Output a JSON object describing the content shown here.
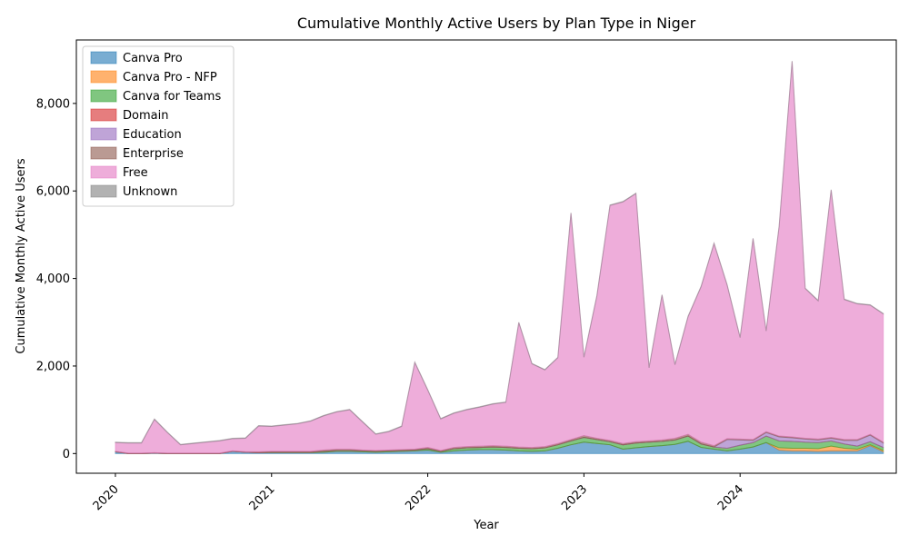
{
  "chart_data": {
    "type": "area",
    "stacked": true,
    "title": "Cumulative Monthly Active Users by Plan Type in Niger",
    "xlabel": "Year",
    "ylabel": "Cumulative Monthly Active Users",
    "x_tick_labels": [
      "2020",
      "2021",
      "2022",
      "2023",
      "2024"
    ],
    "y_tick_labels": [
      "0",
      "2,000",
      "4,000",
      "6,000",
      "8,000"
    ],
    "y_ticks": [
      0,
      2000,
      4000,
      6000,
      8000
    ],
    "ylim": [
      -450,
      9450
    ],
    "xlim": [
      2019.75,
      2025.0
    ],
    "grid": false,
    "legend_position": "top-left",
    "x": [
      2020.0,
      2020.083,
      2020.167,
      2020.25,
      2020.333,
      2020.417,
      2020.5,
      2020.583,
      2020.667,
      2020.75,
      2020.833,
      2020.917,
      2021.0,
      2021.083,
      2021.167,
      2021.25,
      2021.333,
      2021.417,
      2021.5,
      2021.583,
      2021.667,
      2021.75,
      2021.833,
      2021.917,
      2022.0,
      2022.083,
      2022.167,
      2022.25,
      2022.333,
      2022.417,
      2022.5,
      2022.583,
      2022.667,
      2022.75,
      2022.833,
      2022.917,
      2023.0,
      2023.083,
      2023.167,
      2023.25,
      2023.333,
      2023.417,
      2023.5,
      2023.583,
      2023.667,
      2023.75,
      2023.833,
      2023.917,
      2024.0,
      2024.083,
      2024.167,
      2024.25,
      2024.333,
      2024.417,
      2024.5,
      2024.583,
      2024.667,
      2024.75,
      2024.833,
      2024.917
    ],
    "series": [
      {
        "name": "Canva Pro",
        "color": "#1f77b4",
        "values": [
          40,
          0,
          0,
          10,
          0,
          0,
          0,
          0,
          0,
          50,
          30,
          20,
          20,
          20,
          20,
          20,
          30,
          50,
          50,
          40,
          30,
          40,
          50,
          60,
          80,
          30,
          60,
          80,
          90,
          90,
          80,
          60,
          50,
          60,
          120,
          200,
          260,
          230,
          200,
          100,
          130,
          160,
          180,
          210,
          280,
          140,
          100,
          60,
          100,
          150,
          250,
          80,
          60,
          60,
          50,
          60,
          60,
          60,
          180,
          40
        ]
      },
      {
        "name": "Canva Pro - NFP",
        "color": "#ff7f0e",
        "values": [
          0,
          0,
          0,
          0,
          0,
          0,
          0,
          0,
          0,
          0,
          0,
          0,
          0,
          0,
          0,
          0,
          0,
          0,
          0,
          0,
          0,
          0,
          0,
          0,
          0,
          0,
          0,
          0,
          0,
          0,
          0,
          0,
          0,
          0,
          0,
          0,
          0,
          0,
          0,
          0,
          0,
          0,
          0,
          0,
          0,
          0,
          0,
          0,
          0,
          0,
          0,
          50,
          60,
          60,
          60,
          110,
          60,
          40,
          20,
          30
        ]
      },
      {
        "name": "Canva for Teams",
        "color": "#2ca02c",
        "values": [
          0,
          0,
          0,
          0,
          0,
          0,
          0,
          0,
          0,
          0,
          0,
          0,
          10,
          10,
          10,
          10,
          20,
          20,
          20,
          20,
          20,
          20,
          20,
          20,
          30,
          20,
          50,
          50,
          50,
          60,
          60,
          60,
          60,
          70,
          80,
          90,
          110,
          90,
          70,
          100,
          110,
          100,
          100,
          100,
          120,
          80,
          50,
          60,
          90,
          100,
          150,
          160,
          160,
          140,
          140,
          120,
          100,
          70,
          70,
          70
        ]
      },
      {
        "name": "Domain",
        "color": "#d62728",
        "values": [
          0,
          0,
          0,
          0,
          0,
          0,
          0,
          0,
          0,
          0,
          0,
          0,
          0,
          0,
          0,
          0,
          0,
          0,
          0,
          0,
          0,
          0,
          0,
          0,
          0,
          0,
          0,
          0,
          0,
          0,
          0,
          0,
          0,
          0,
          0,
          0,
          0,
          0,
          0,
          0,
          0,
          0,
          0,
          0,
          0,
          0,
          0,
          0,
          0,
          0,
          0,
          0,
          0,
          0,
          0,
          0,
          0,
          0,
          0,
          0
        ]
      },
      {
        "name": "Education",
        "color": "#9467bd",
        "values": [
          0,
          0,
          0,
          0,
          0,
          0,
          0,
          0,
          0,
          0,
          0,
          0,
          0,
          0,
          0,
          0,
          0,
          0,
          0,
          0,
          0,
          0,
          0,
          0,
          0,
          0,
          0,
          0,
          0,
          0,
          0,
          0,
          0,
          0,
          0,
          0,
          0,
          0,
          0,
          0,
          0,
          0,
          0,
          0,
          0,
          0,
          0,
          200,
          120,
          50,
          80,
          90,
          80,
          70,
          60,
          60,
          80,
          130,
          150,
          100
        ]
      },
      {
        "name": "Enterprise",
        "color": "#8c564b",
        "values": [
          10,
          10,
          10,
          10,
          10,
          10,
          10,
          10,
          10,
          10,
          10,
          20,
          20,
          20,
          20,
          20,
          30,
          30,
          30,
          20,
          20,
          20,
          20,
          20,
          30,
          20,
          30,
          30,
          30,
          30,
          30,
          30,
          30,
          30,
          30,
          30,
          40,
          30,
          30,
          30,
          30,
          30,
          30,
          40,
          40,
          40,
          30,
          20,
          20,
          20,
          20,
          20,
          20,
          20,
          20,
          20,
          20,
          20,
          20,
          20
        ]
      },
      {
        "name": "Free",
        "color": "#e377c2",
        "values": [
          200,
          230,
          230,
          760,
          470,
          190,
          220,
          250,
          280,
          280,
          310,
          590,
          570,
          600,
          630,
          690,
          780,
          850,
          900,
          640,
          370,
          420,
          530,
          1980,
          1310,
          720,
          780,
          840,
          890,
          950,
          1000,
          2840,
          1910,
          1750,
          1960,
          5170,
          1790,
          3250,
          5370,
          5520,
          5670,
          1670,
          3310,
          1680,
          2690,
          3550,
          4620,
          3510,
          2320,
          4590,
          2300,
          4790,
          8580,
          3420,
          3160,
          5650,
          3200,
          3100,
          2950,
          2930
        ]
      },
      {
        "name": "Unknown",
        "color": "#7f7f7f",
        "values": [
          10,
          10,
          10,
          10,
          10,
          10,
          10,
          10,
          10,
          10,
          10,
          10,
          10,
          10,
          10,
          10,
          10,
          10,
          10,
          10,
          10,
          10,
          10,
          10,
          10,
          10,
          10,
          10,
          10,
          10,
          10,
          10,
          10,
          10,
          10,
          10,
          10,
          10,
          10,
          10,
          10,
          10,
          10,
          10,
          10,
          10,
          10,
          10,
          10,
          10,
          10,
          10,
          10,
          10,
          10,
          10,
          10,
          10,
          10,
          10
        ]
      }
    ]
  }
}
